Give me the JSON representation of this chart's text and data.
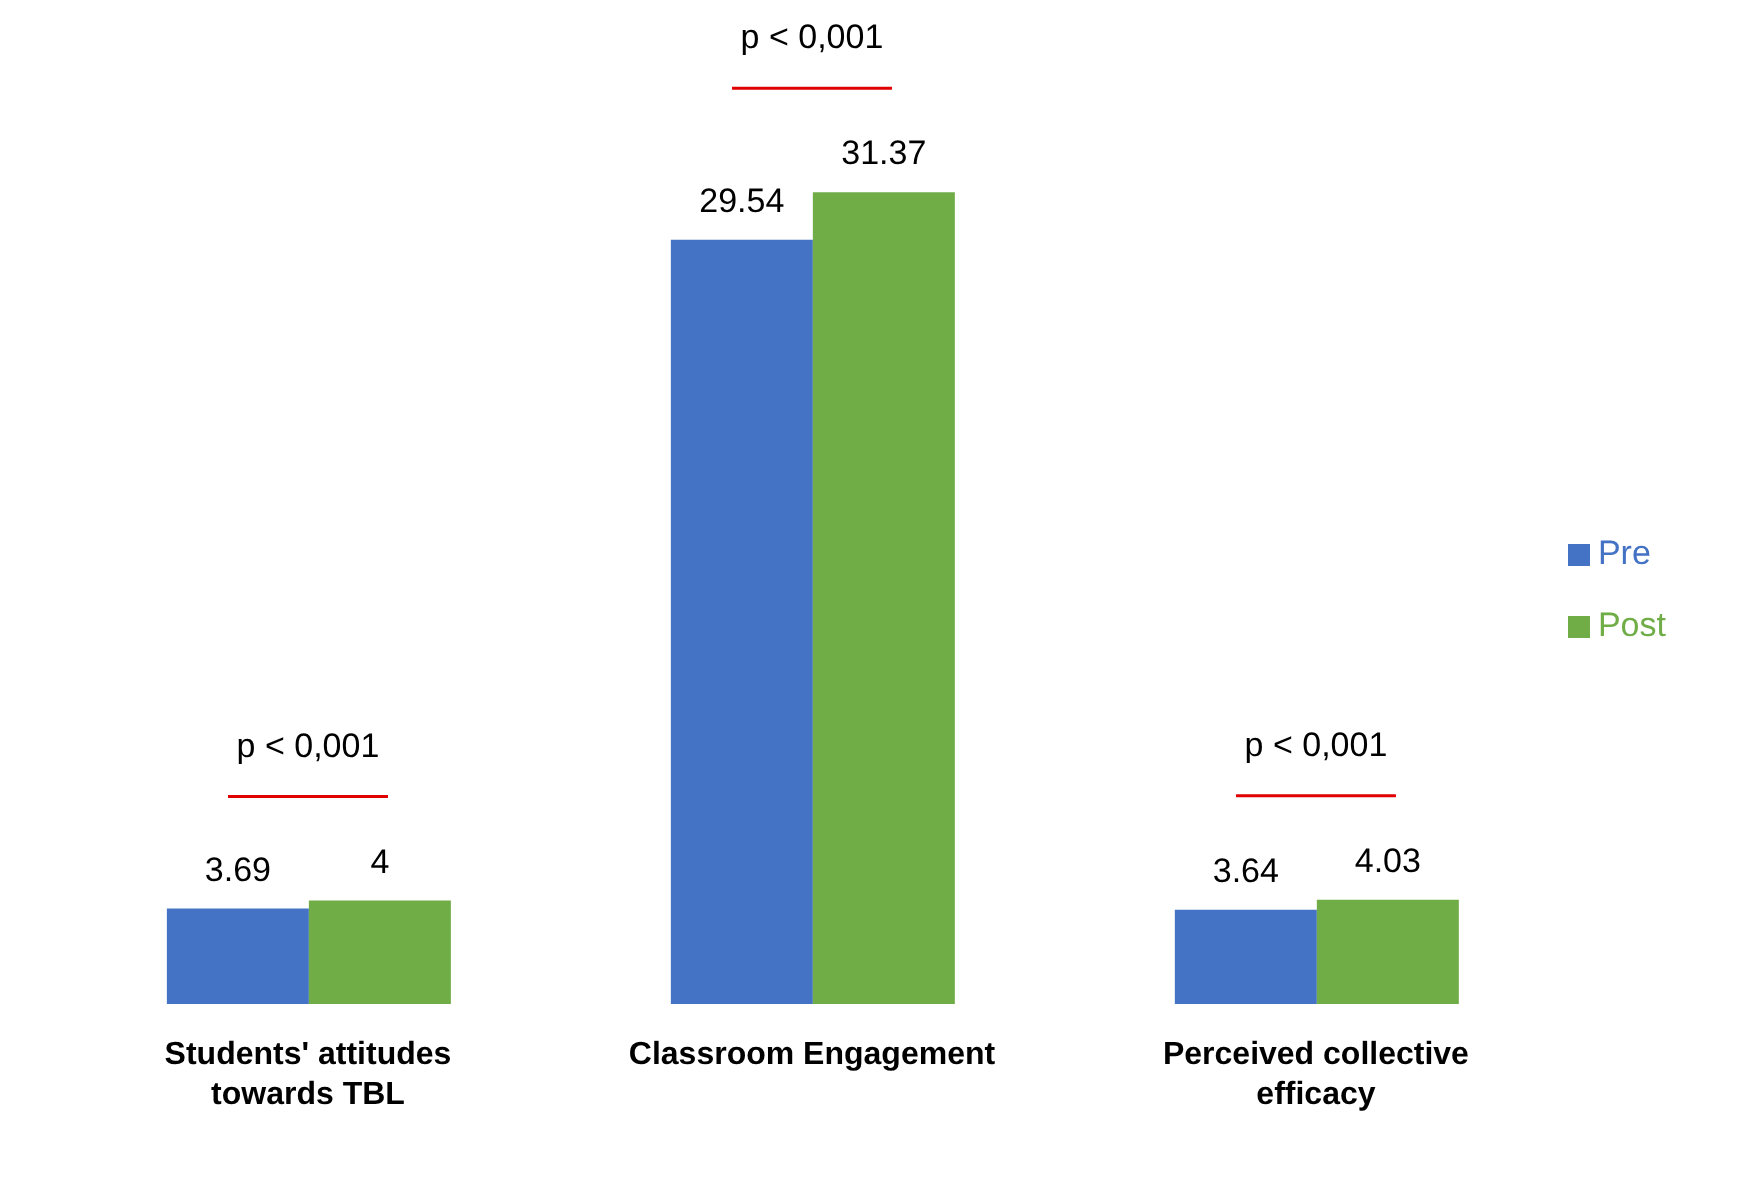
{
  "chart_data": {
    "type": "bar",
    "categories": [
      "Students' attitudes towards TBL",
      "Classroom Engagement",
      "Perceived collective efficacy"
    ],
    "series": [
      {
        "name": "Pre",
        "color": "#4472c4",
        "values": [
          3.69,
          29.54,
          3.64
        ]
      },
      {
        "name": "Post",
        "color": "#70ad47",
        "values": [
          4,
          31.37,
          4.03
        ]
      }
    ],
    "data_labels": true,
    "legend": "right",
    "grid": false,
    "tick_labels": "x",
    "annotations": [
      "p < 0,001",
      "p < 0,001",
      "p < 0,001"
    ]
  }
}
